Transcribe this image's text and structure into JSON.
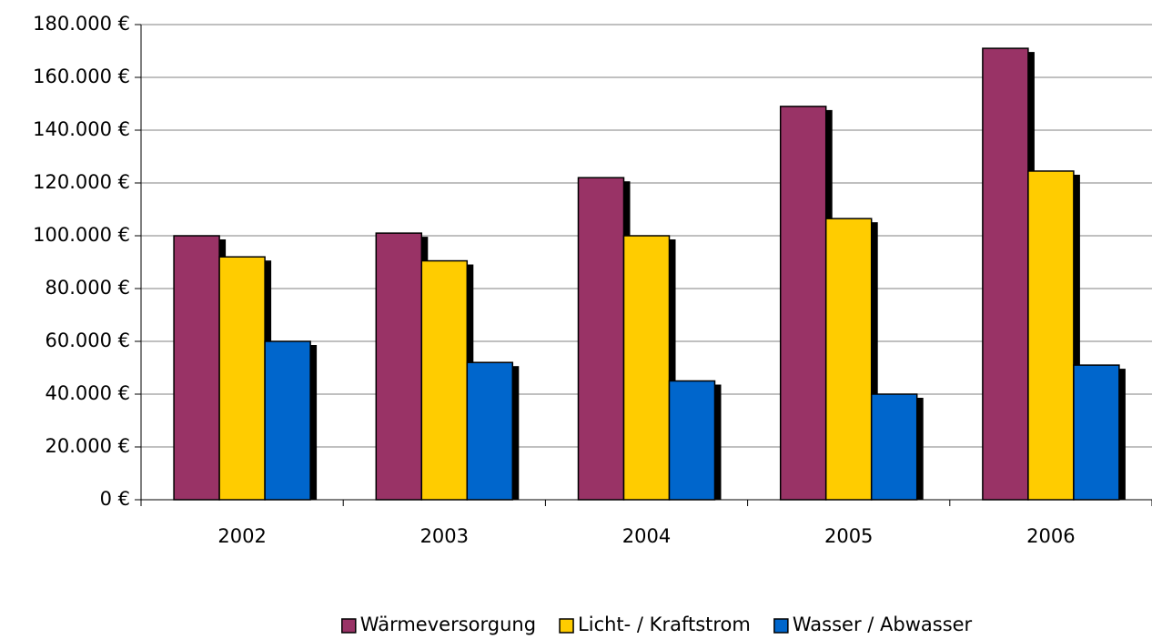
{
  "chart_data": {
    "type": "bar",
    "categories": [
      "2002",
      "2003",
      "2004",
      "2005",
      "2006"
    ],
    "series": [
      {
        "name": "Wärmeversorgung",
        "color": "#993366",
        "values": [
          100000,
          101000,
          122000,
          149000,
          171000
        ]
      },
      {
        "name": "Licht- / Kraftstrom",
        "color": "#ffcc00",
        "values": [
          92000,
          90500,
          100000,
          106500,
          124500
        ]
      },
      {
        "name": "Wasser / Abwasser",
        "color": "#0066cc",
        "values": [
          60000,
          52000,
          45000,
          40000,
          51000
        ]
      }
    ],
    "ylim": [
      0,
      180000
    ],
    "yticks": [
      {
        "value": 0,
        "label": "0 €"
      },
      {
        "value": 20000,
        "label": "20.000 €"
      },
      {
        "value": 40000,
        "label": "40.000 €"
      },
      {
        "value": 60000,
        "label": "60.000 €"
      },
      {
        "value": 80000,
        "label": "80.000 €"
      },
      {
        "value": 100000,
        "label": "100.000 €"
      },
      {
        "value": 120000,
        "label": "120.000 €"
      },
      {
        "value": 140000,
        "label": "140.000 €"
      },
      {
        "value": 160000,
        "label": "160.000 €"
      },
      {
        "value": 180000,
        "label": "180.000 €"
      }
    ],
    "grid": true,
    "legend": "bottom"
  }
}
